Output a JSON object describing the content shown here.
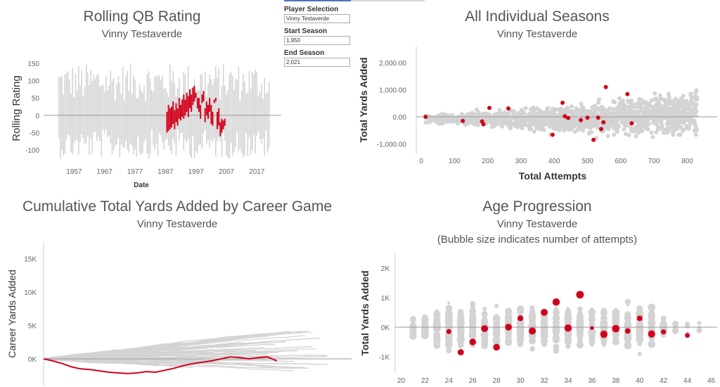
{
  "controls": {
    "player_label": "Player Selection",
    "player_value": "Vinny Testaverde",
    "start_label": "Start Season",
    "start_value": "1,950",
    "end_label": "End Season",
    "end_value": "2,021"
  },
  "colors": {
    "highlight": "#d0021b",
    "background_series": "#d3d3d3",
    "zero_line": "#999999"
  },
  "chart_data": [
    {
      "id": "rolling",
      "type": "line",
      "title": "Rolling QB Rating",
      "subtitle": "Vinny Testaverde",
      "xlabel": "Date",
      "ylabel": "Rolling Rating",
      "xlim": [
        1947,
        2025
      ],
      "ylim": [
        -130,
        170
      ],
      "xticks": [
        1957,
        1967,
        1977,
        1987,
        1997,
        2007,
        2017
      ],
      "xtick_labels": [
        "1957",
        "1967",
        "1977",
        "1987",
        "1997",
        "2007",
        "2017"
      ],
      "yticks": [
        -100,
        -50,
        0,
        50,
        100,
        150
      ],
      "ytick_labels": [
        "-100",
        "-50",
        "0",
        "50",
        "100",
        "150"
      ],
      "grid": false,
      "series": [
        {
          "role": "highlight",
          "note": "selected player",
          "x": [
            1987.5,
            1988,
            1988.5,
            1989,
            1989.5,
            1990,
            1990.5,
            1991,
            1991.5,
            1992,
            1992.5,
            1993,
            1993.5,
            1994,
            1994.5,
            1995,
            1995.5,
            1996,
            1996.5,
            1997,
            1997.5,
            1998,
            1998.5,
            1999,
            1999.5,
            2000,
            2000.5,
            2001,
            2001.5,
            2002,
            2002.5,
            2003,
            2003.5,
            2004,
            2004.5,
            2005,
            2005.5,
            2006,
            2006.5
          ],
          "low": [
            -50,
            -45,
            -40,
            -35,
            -25,
            -40,
            -20,
            -30,
            -10,
            -15,
            -5,
            -10,
            0,
            10,
            -5,
            20,
            10,
            30,
            40,
            50,
            20,
            10,
            -10,
            35,
            40,
            -20,
            0,
            -10,
            10,
            -25,
            -30,
            35,
            40,
            -40,
            -30,
            -60,
            -50,
            -40,
            -30
          ],
          "high": [
            10,
            30,
            20,
            25,
            40,
            15,
            35,
            20,
            50,
            30,
            45,
            60,
            45,
            65,
            55,
            75,
            60,
            80,
            85,
            65,
            50,
            50,
            30,
            60,
            70,
            20,
            40,
            30,
            50,
            30,
            10,
            45,
            50,
            10,
            20,
            -20,
            -10,
            -15,
            -10
          ]
        }
      ],
      "background_seasons": [
        1950,
        2021
      ]
    },
    {
      "id": "seasons",
      "type": "scatter",
      "title": "All Individual Seasons",
      "subtitle": "Vinny Testaverde",
      "xlabel": "Total Attempts",
      "ylabel": "Total Yards Added",
      "xlim": [
        -15,
        890
      ],
      "ylim": [
        -1350,
        2600
      ],
      "xticks": [
        0,
        100,
        200,
        300,
        400,
        500,
        600,
        700,
        800
      ],
      "xtick_labels": [
        "0",
        "100",
        "200",
        "300",
        "400",
        "500",
        "600",
        "700",
        "800"
      ],
      "yticks": [
        -1000,
        0,
        1000,
        2000
      ],
      "ytick_labels": [
        "-1,000.00",
        "0.00",
        "1,000.00",
        "2,000.00"
      ],
      "grid": false,
      "series": [
        {
          "role": "highlight",
          "note": "selected player seasons",
          "points": [
            [
              13,
              0
            ],
            [
              125,
              -150
            ],
            [
              183,
              -170
            ],
            [
              187,
              -270
            ],
            [
              205,
              330
            ],
            [
              262,
              310
            ],
            [
              395,
              -660
            ],
            [
              425,
              520
            ],
            [
              432,
              20
            ],
            [
              442,
              -40
            ],
            [
              480,
              -120
            ],
            [
              500,
              -30
            ],
            [
              518,
              -850
            ],
            [
              532,
              -30
            ],
            [
              541,
              -450
            ],
            [
              548,
              -200
            ],
            [
              555,
              1100
            ],
            [
              620,
              840
            ],
            [
              633,
              -240
            ]
          ]
        }
      ]
    },
    {
      "id": "cumulative",
      "type": "line",
      "title": "Cumulative Total Yards Added by Career Game",
      "subtitle": "Vinny Testaverde",
      "xlabel": "",
      "ylabel": "Career Yards Added",
      "xlim": [
        0,
        330
      ],
      "ylim": [
        -4000,
        17500
      ],
      "yticks": [
        0,
        5000,
        10000,
        15000
      ],
      "ytick_labels": [
        "0K",
        "5K",
        "10K",
        "15K"
      ],
      "grid": false,
      "series": [
        {
          "role": "highlight",
          "note": "selected player",
          "x": [
            0,
            10,
            20,
            30,
            40,
            50,
            60,
            70,
            80,
            90,
            100,
            110,
            120,
            130,
            140,
            150,
            160,
            170,
            180,
            190,
            200,
            210,
            220,
            230,
            240,
            250
          ],
          "y": [
            0,
            -300,
            -700,
            -1200,
            -1500,
            -1600,
            -1800,
            -2000,
            -2100,
            -2200,
            -2100,
            -1900,
            -2000,
            -1700,
            -1400,
            -1000,
            -700,
            -500,
            -300,
            0,
            300,
            200,
            0,
            200,
            300,
            -300
          ]
        }
      ]
    },
    {
      "id": "age",
      "type": "scatter",
      "title": "Age Progression",
      "subtitle": "Vinny Testaverde",
      "subtitle2": "(Bubble size indicates number of attempts)",
      "xlabel": "",
      "ylabel": "Total Yards Added",
      "xlim": [
        19.5,
        46.5
      ],
      "ylim": [
        -1550,
        2500
      ],
      "xticks": [
        20,
        22,
        24,
        26,
        28,
        30,
        32,
        34,
        36,
        38,
        40,
        42,
        44,
        46
      ],
      "xtick_labels": [
        "20",
        "22",
        "24",
        "26",
        "28",
        "30",
        "32",
        "34",
        "36",
        "38",
        "40",
        "42",
        "44",
        "46"
      ],
      "yticks": [
        -1000,
        0,
        1000,
        2000
      ],
      "ytick_labels": [
        "-1K",
        "0K",
        "1K",
        "2K"
      ],
      "grid": false,
      "series": [
        {
          "role": "highlight",
          "note": "selected player seasons (age, yards, attempts)",
          "points": [
            [
              24,
              -150,
              150
            ],
            [
              25,
              -850,
              300
            ],
            [
              26,
              -500,
              350
            ],
            [
              27,
              -50,
              400
            ],
            [
              28,
              -680,
              380
            ],
            [
              29,
              0,
              380
            ],
            [
              30,
              300,
              250
            ],
            [
              31,
              -130,
              440
            ],
            [
              32,
              500,
              390
            ],
            [
              33,
              850,
              490
            ],
            [
              34,
              -30,
              470
            ],
            [
              35,
              1100,
              540
            ],
            [
              36,
              -30,
              50
            ],
            [
              37,
              -240,
              480
            ],
            [
              38,
              -50,
              500
            ],
            [
              39,
              -130,
              200
            ],
            [
              40,
              300,
              200
            ],
            [
              41,
              -230,
              450
            ],
            [
              42,
              -160,
              150
            ],
            [
              44,
              -280,
              130
            ]
          ]
        }
      ]
    }
  ]
}
